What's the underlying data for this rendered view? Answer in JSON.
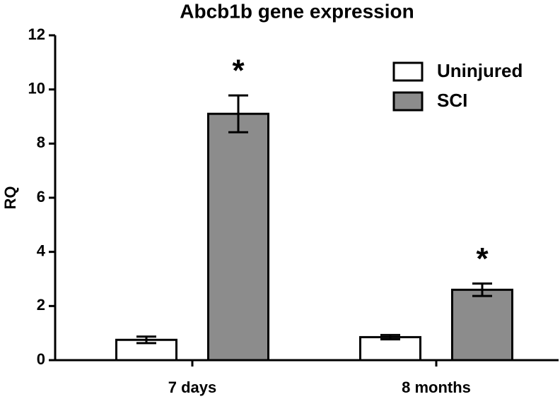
{
  "chart_data": {
    "type": "bar",
    "title": "Abcb1b gene expression",
    "y_label": "RQ",
    "categories": [
      "7 days",
      "8 months"
    ],
    "series": [
      {
        "name": "Uninjured",
        "color": "#ffffff",
        "values": [
          0.75,
          0.85
        ],
        "errors": [
          0.12,
          0.08
        ]
      },
      {
        "name": "SCI",
        "color": "#8c8c8c",
        "values": [
          9.1,
          2.6
        ],
        "errors": [
          0.68,
          0.23
        ],
        "significance": [
          "*",
          "*"
        ]
      }
    ],
    "ylim": [
      0,
      12
    ],
    "yticks": [
      0,
      2,
      4,
      6,
      8,
      10,
      12
    ],
    "grid": false,
    "legend": "upper right"
  }
}
